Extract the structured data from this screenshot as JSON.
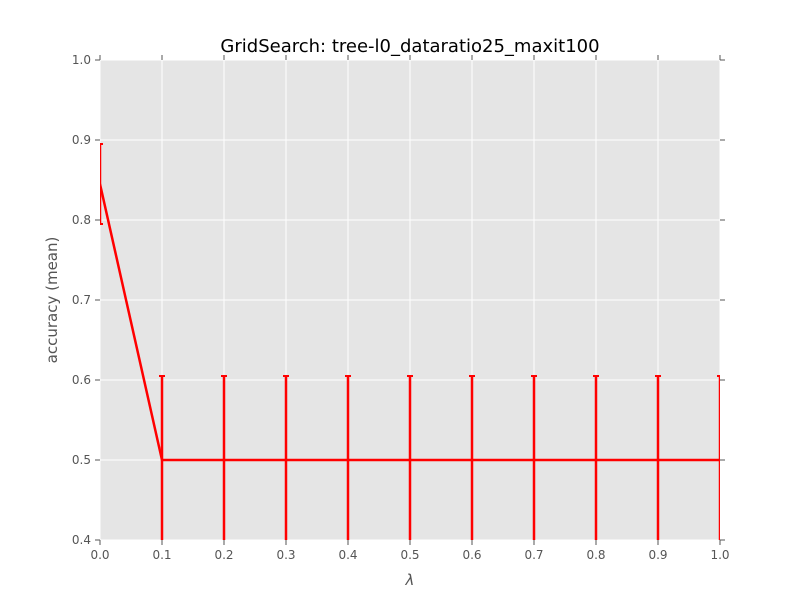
{
  "chart_data": {
    "type": "line",
    "title": "GridSearch: tree-l0_dataratio25_maxit100",
    "xlabel": "λ",
    "ylabel": "accuracy (mean)",
    "xlim": [
      0.0,
      1.0
    ],
    "ylim": [
      0.4,
      1.0
    ],
    "grid": true,
    "x_ticks": [
      "0.0",
      "0.1",
      "0.2",
      "0.3",
      "0.4",
      "0.5",
      "0.6",
      "0.7",
      "0.8",
      "0.9",
      "1.0"
    ],
    "y_ticks": [
      "0.4",
      "0.5",
      "0.6",
      "0.7",
      "0.8",
      "0.9",
      "1.0"
    ],
    "series": [
      {
        "name": "accuracy",
        "x": [
          0.0,
          0.1,
          0.2,
          0.3,
          0.4,
          0.5,
          0.6,
          0.7,
          0.8,
          0.9,
          1.0
        ],
        "y": [
          0.845,
          0.5,
          0.5,
          0.5,
          0.5,
          0.5,
          0.5,
          0.5,
          0.5,
          0.5,
          0.5
        ],
        "yerr": [
          0.05,
          0.105,
          0.105,
          0.105,
          0.105,
          0.105,
          0.105,
          0.105,
          0.105,
          0.105,
          0.105
        ]
      }
    ],
    "colors": {
      "line": "#ff0000",
      "plot_bg": "#e5e5e5",
      "grid": "#ffffff",
      "tick": "#555555"
    }
  }
}
